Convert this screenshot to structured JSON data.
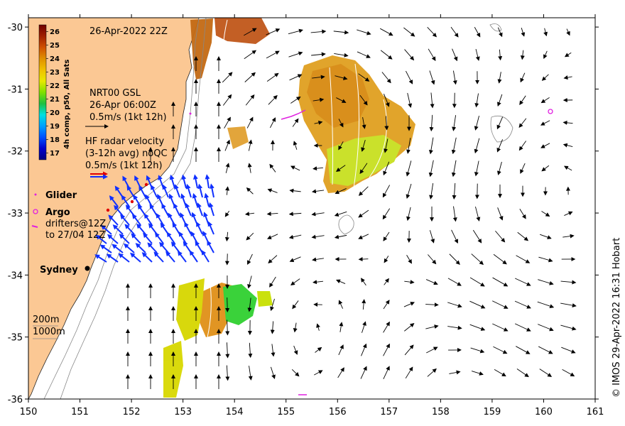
{
  "map": {
    "date_label": "26-Apr-2022 22Z",
    "x_ticks": [
      150,
      151,
      152,
      153,
      154,
      155,
      156,
      157,
      158,
      159,
      160,
      161
    ],
    "y_ticks": [
      -30,
      -31,
      -32,
      -33,
      -34,
      -35,
      -36
    ],
    "xlim": [
      150,
      161
    ],
    "ylim": [
      -36,
      -29.85
    ],
    "credit": "© IMOS 29-Apr-2022 16:31 Hobart"
  },
  "colorbar": {
    "title": "4h comp, p50, All Sats",
    "ticks": [
      26,
      25,
      24,
      23,
      22,
      21,
      20,
      19,
      18,
      17
    ],
    "range": [
      16.5,
      26.5
    ],
    "stops": [
      "#000080",
      "#0000cc",
      "#0050ff",
      "#00a0ff",
      "#00e0e0",
      "#20c040",
      "#80e000",
      "#e8e800",
      "#f0c000",
      "#e09000",
      "#d05000",
      "#a02000",
      "#700000"
    ]
  },
  "legend": {
    "gsl_title": "NRT00 GSL",
    "gsl_time": "26-Apr 06:00Z",
    "gsl_scale": "0.5m/s (1kt 12h)",
    "hf_title": "HF radar velocity",
    "hf_avg": "(3-12h avg) noQC",
    "hf_scale": "0.5m/s (1kt 12h)",
    "glider": "Glider",
    "argo": "Argo",
    "drifters_1": "drifters@12Z",
    "drifters_2": "to 27/04 12Z",
    "city": "Sydney",
    "depth_200": "200m",
    "depth_1000": "1000m"
  },
  "colors": {
    "land": "#fbc894",
    "ocean": "#ffffff",
    "hf_arrow": "#1030ff",
    "glider": "#e020e0",
    "argo": "#e020e0",
    "drifter": "#e020e0"
  }
}
